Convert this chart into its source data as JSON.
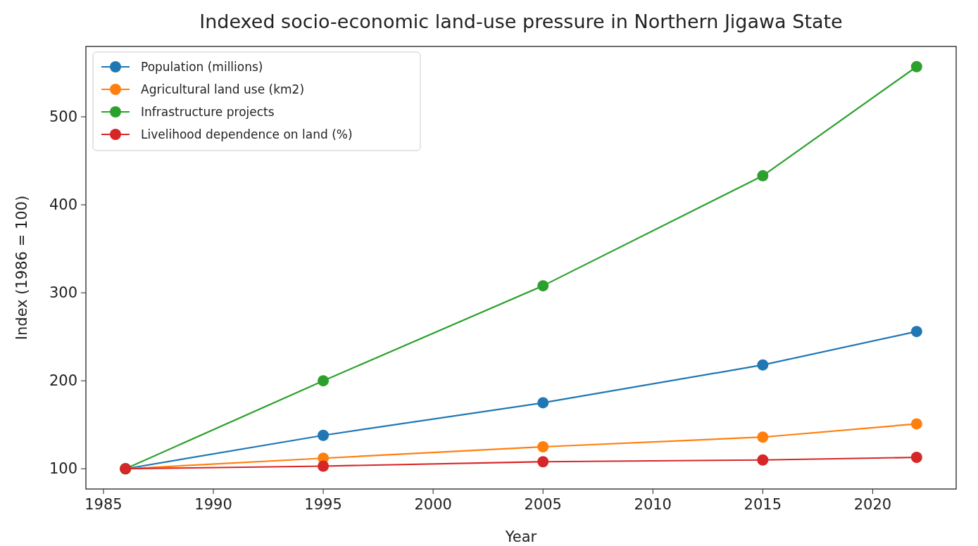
{
  "chart_data": {
    "type": "line",
    "title": "Indexed socio-economic land-use pressure in Northern Jigawa State",
    "xlabel": "Year",
    "ylabel": "Index (1986 = 100)",
    "x": [
      1986,
      1995,
      2005,
      2015,
      2022
    ],
    "series": [
      {
        "name": "Population (millions)",
        "color": "#1f77b4",
        "values": [
          100,
          138,
          175,
          218,
          256
        ]
      },
      {
        "name": "Agricultural land use (km2)",
        "color": "#ff7f0e",
        "values": [
          100,
          112,
          125,
          136,
          151
        ]
      },
      {
        "name": "Infrastructure projects",
        "color": "#2ca02c",
        "values": [
          100,
          200,
          308,
          433,
          557
        ]
      },
      {
        "name": "Livelihood dependence on land (%)",
        "color": "#d62728",
        "values": [
          100,
          103,
          108,
          110,
          113
        ]
      }
    ],
    "xlim": [
      1984.2,
      2023.8
    ],
    "xticks": [
      1985,
      1990,
      1995,
      2000,
      2005,
      2010,
      2015,
      2020
    ],
    "ylim": [
      77,
      580
    ],
    "yticks": [
      100,
      200,
      300,
      400,
      500
    ],
    "grid": false,
    "legend": "top left",
    "marker": "circle",
    "line_style": "solid"
  }
}
